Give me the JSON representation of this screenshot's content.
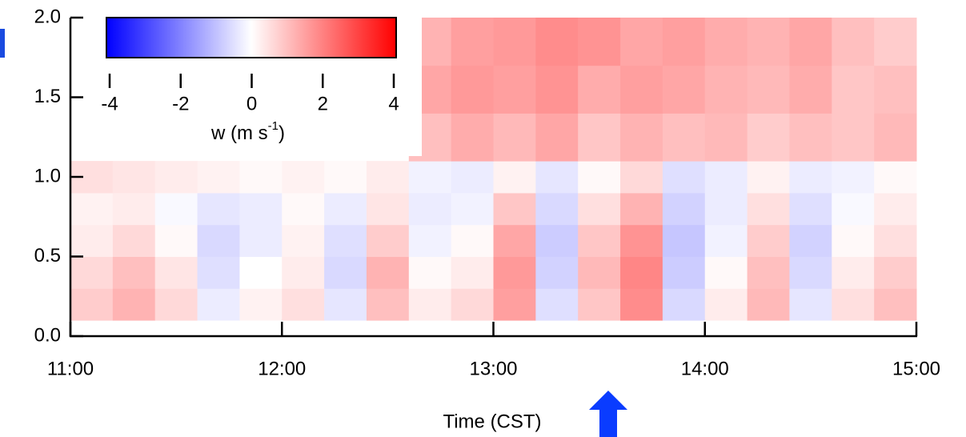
{
  "chart_data": {
    "type": "heatmap",
    "xlabel": "Time (CST)",
    "xbins": [
      11.0,
      11.2,
      11.4,
      11.6,
      11.8,
      12.0,
      12.2,
      12.4,
      12.6,
      12.8,
      13.0,
      13.2,
      13.4,
      13.6,
      13.8,
      14.0,
      14.2,
      14.4,
      14.6,
      14.8,
      15.0
    ],
    "ybins": [
      0.1,
      0.3,
      0.5,
      0.7,
      0.9,
      1.1,
      1.4,
      1.7,
      2.0
    ],
    "z": [
      [
        0.8,
        1.2,
        0.6,
        -0.3,
        0.2,
        0.5,
        -0.4,
        1.0,
        0.3,
        0.6,
        1.5,
        -0.5,
        0.9,
        1.8,
        -0.6,
        0.3,
        1.1,
        -0.4,
        0.5,
        1.0
      ],
      [
        0.6,
        1.0,
        0.4,
        -0.5,
        0,
        0.3,
        -0.6,
        1.2,
        0.1,
        0.3,
        1.6,
        -0.7,
        1.1,
        1.9,
        -0.8,
        0.1,
        1.0,
        -0.6,
        0.3,
        0.8
      ],
      [
        0.3,
        0.6,
        0.1,
        -0.6,
        -0.3,
        0.2,
        -0.5,
        0.8,
        -0.2,
        0.1,
        1.4,
        -0.8,
        0.9,
        1.7,
        -0.9,
        -0.2,
        0.8,
        -0.7,
        0.1,
        0.5
      ],
      [
        0.2,
        0.3,
        -0.1,
        -0.4,
        -0.3,
        0.1,
        -0.3,
        0.4,
        -0.3,
        -0.2,
        0.9,
        -0.6,
        0.5,
        1.2,
        -0.7,
        -0.3,
        0.5,
        -0.5,
        -0.1,
        0.3
      ],
      [
        0.5,
        0.4,
        0.3,
        0.2,
        0.1,
        0.2,
        0.1,
        0.3,
        -0.2,
        -0.3,
        0.2,
        -0.4,
        0.1,
        0.6,
        -0.5,
        -0.3,
        0.2,
        -0.3,
        -0.2,
        0.1
      ],
      [
        null,
        null,
        null,
        null,
        null,
        null,
        null,
        null,
        1.0,
        1.3,
        1.1,
        1.4,
        0.9,
        1.2,
        1.0,
        1.1,
        0.8,
        1.0,
        0.9,
        1.1
      ],
      [
        null,
        null,
        null,
        null,
        null,
        null,
        null,
        null,
        1.4,
        1.6,
        1.5,
        1.7,
        1.3,
        1.5,
        1.4,
        1.2,
        1.1,
        1.3,
        0.9,
        1.0
      ],
      [
        null,
        null,
        null,
        null,
        null,
        null,
        null,
        null,
        1.2,
        1.5,
        1.6,
        1.8,
        1.7,
        1.4,
        1.5,
        1.3,
        1.2,
        1.4,
        1.0,
        0.8
      ]
    ],
    "xlim": [
      11,
      15
    ],
    "xticks": [
      {
        "value": 11,
        "label": "11:00"
      },
      {
        "value": 12,
        "label": "12:00"
      },
      {
        "value": 13,
        "label": "13:00"
      },
      {
        "value": 14,
        "label": "14:00"
      },
      {
        "value": 15,
        "label": "15:00"
      }
    ],
    "ylim": [
      0,
      2
    ],
    "yticks": [
      {
        "value": 0,
        "label": "0.0"
      },
      {
        "value": 0.5,
        "label": "0.5"
      },
      {
        "value": 1,
        "label": "1.0"
      },
      {
        "value": 1.5,
        "label": "1.5"
      },
      {
        "value": 2,
        "label": "2.0"
      }
    ],
    "clim": [
      -4,
      4
    ],
    "cticks": [
      -4,
      -2,
      0,
      2,
      4
    ],
    "colormap": [
      "#0000ff",
      "#ffffff",
      "#ff0000"
    ],
    "colorbar_label": [
      "w (m s",
      "-1",
      ")"
    ]
  }
}
